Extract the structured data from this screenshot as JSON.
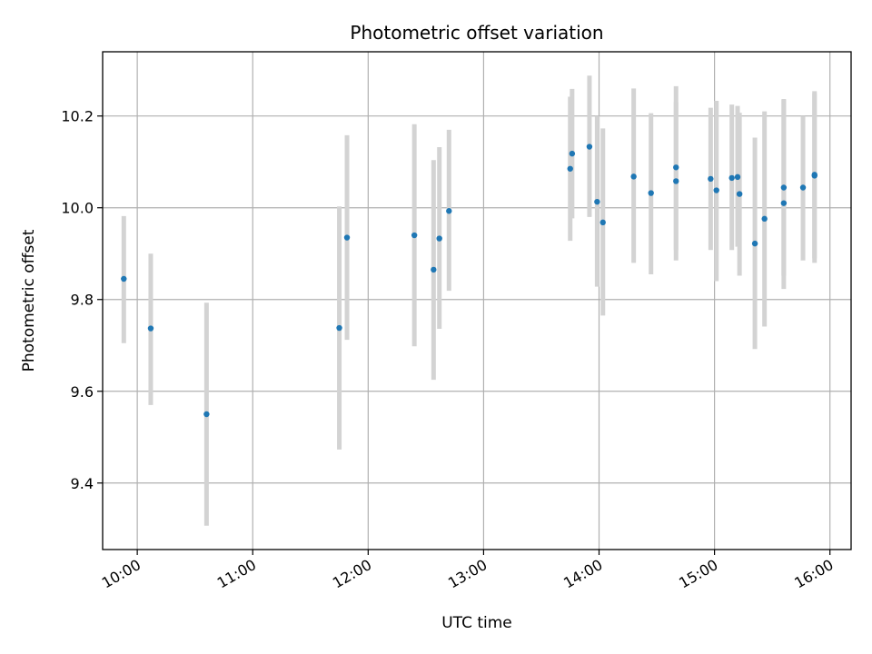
{
  "chart_data": {
    "type": "scatter",
    "title": "Photometric offset variation",
    "xlabel": "UTC time",
    "ylabel": "Photometric offset",
    "xlim": [
      "09:42",
      "16:11"
    ],
    "ylim": [
      9.255,
      10.34
    ],
    "x_ticks": [
      "10:00",
      "11:00",
      "12:00",
      "13:00",
      "14:00",
      "15:00",
      "16:00"
    ],
    "y_ticks": [
      "9.4",
      "9.6",
      "9.8",
      "10.0",
      "10.2"
    ],
    "grid": true,
    "colors": {
      "points": "#1f77b4",
      "error_bars": "#d3d3d3",
      "grid": "#b0b0b0"
    },
    "points": [
      {
        "x": "09:53",
        "y": 9.845,
        "ylow": 9.705,
        "yhigh": 9.982
      },
      {
        "x": "10:07",
        "y": 9.737,
        "ylow": 9.57,
        "yhigh": 9.9
      },
      {
        "x": "10:36",
        "y": 9.55,
        "ylow": 9.307,
        "yhigh": 9.793
      },
      {
        "x": "11:45",
        "y": 9.738,
        "ylow": 9.473,
        "yhigh": 10.003
      },
      {
        "x": "11:49",
        "y": 9.935,
        "ylow": 9.712,
        "yhigh": 10.158
      },
      {
        "x": "12:24",
        "y": 9.94,
        "ylow": 9.698,
        "yhigh": 10.182
      },
      {
        "x": "12:34",
        "y": 9.865,
        "ylow": 9.625,
        "yhigh": 10.104
      },
      {
        "x": "12:37",
        "y": 9.933,
        "ylow": 9.736,
        "yhigh": 10.132
      },
      {
        "x": "12:42",
        "y": 9.993,
        "ylow": 9.819,
        "yhigh": 10.17
      },
      {
        "x": "13:45",
        "y": 10.085,
        "ylow": 9.928,
        "yhigh": 10.242
      },
      {
        "x": "13:46",
        "y": 10.118,
        "ylow": 9.977,
        "yhigh": 10.259
      },
      {
        "x": "13:55",
        "y": 10.133,
        "ylow": 9.98,
        "yhigh": 10.288
      },
      {
        "x": "13:59",
        "y": 10.013,
        "ylow": 9.828,
        "yhigh": 10.2
      },
      {
        "x": "14:02",
        "y": 9.968,
        "ylow": 9.765,
        "yhigh": 10.173
      },
      {
        "x": "14:18",
        "y": 10.068,
        "ylow": 9.88,
        "yhigh": 10.26
      },
      {
        "x": "14:27",
        "y": 10.032,
        "ylow": 9.855,
        "yhigh": 10.206
      },
      {
        "x": "14:40",
        "y": 10.088,
        "ylow": 9.908,
        "yhigh": 10.265
      },
      {
        "x": "14:40",
        "y": 10.058,
        "ylow": 9.885,
        "yhigh": 10.23
      },
      {
        "x": "14:58",
        "y": 10.063,
        "ylow": 9.908,
        "yhigh": 10.218
      },
      {
        "x": "15:01",
        "y": 10.038,
        "ylow": 9.84,
        "yhigh": 10.233
      },
      {
        "x": "15:09",
        "y": 10.065,
        "ylow": 9.908,
        "yhigh": 10.225
      },
      {
        "x": "15:12",
        "y": 10.067,
        "ylow": 9.915,
        "yhigh": 10.222
      },
      {
        "x": "15:13",
        "y": 10.03,
        "ylow": 9.852,
        "yhigh": 10.207
      },
      {
        "x": "15:21",
        "y": 9.922,
        "ylow": 9.692,
        "yhigh": 10.153
      },
      {
        "x": "15:26",
        "y": 9.976,
        "ylow": 9.741,
        "yhigh": 10.21
      },
      {
        "x": "15:36",
        "y": 10.01,
        "ylow": 9.823,
        "yhigh": 10.235
      },
      {
        "x": "15:36",
        "y": 10.044,
        "ylow": 9.852,
        "yhigh": 10.237
      },
      {
        "x": "15:46",
        "y": 10.044,
        "ylow": 9.885,
        "yhigh": 10.2
      },
      {
        "x": "15:52",
        "y": 10.072,
        "ylow": 9.88,
        "yhigh": 10.254
      },
      {
        "x": "15:52",
        "y": 10.07,
        "ylow": 9.89,
        "yhigh": 10.25
      }
    ]
  }
}
